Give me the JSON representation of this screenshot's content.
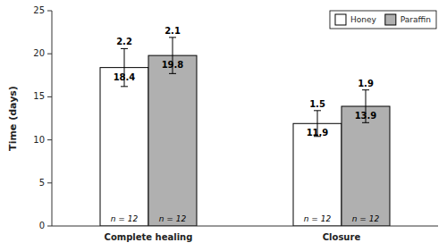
{
  "chart_data": {
    "type": "bar",
    "categories": [
      "Complete healing",
      "Closure"
    ],
    "series": [
      {
        "name": "Honey",
        "color": "#FFFFFF",
        "values": [
          18.4,
          11.9
        ],
        "errors": [
          2.2,
          1.5
        ]
      },
      {
        "name": "Paraffin",
        "color": "#B0B0B0",
        "values": [
          19.8,
          13.9
        ],
        "errors": [
          2.1,
          1.9
        ]
      }
    ],
    "ylabel": "Time (days)",
    "ylim": [
      0,
      25
    ],
    "yticks": [
      0,
      5,
      10,
      15,
      20,
      25
    ],
    "annotations": [
      "n = 12"
    ],
    "data_labels": true,
    "legend": "upper right"
  }
}
